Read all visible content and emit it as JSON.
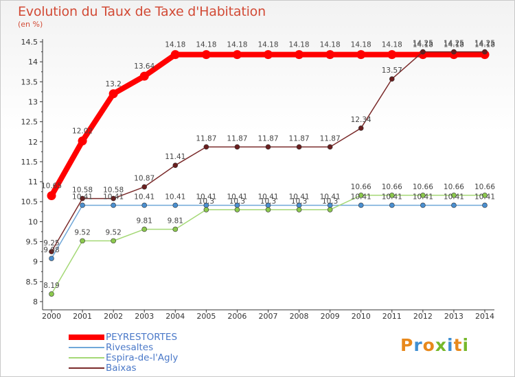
{
  "header": {
    "title": "Evolution du Taux de Taxe d'Habitation",
    "subtitle": "(en %)"
  },
  "logo": {
    "text": "Proxiti",
    "letters": [
      {
        "ch": "P",
        "color": "#e8891c"
      },
      {
        "ch": "r",
        "color": "#3f8fd2"
      },
      {
        "ch": "o",
        "color": "#e8891c"
      },
      {
        "ch": "x",
        "color": "#76b82a"
      },
      {
        "ch": "i",
        "color": "#3f8fd2"
      },
      {
        "ch": "t",
        "color": "#e8891c"
      },
      {
        "ch": "i",
        "color": "#76b82a"
      }
    ]
  },
  "chart_data": {
    "type": "line",
    "title": "Evolution du Taux de Taxe d'Habitation",
    "subtitle": "(en %)",
    "xlabel": "",
    "ylabel": "",
    "ylim": [
      8,
      14.5
    ],
    "y_ticks": [
      "8",
      "8.5",
      "9",
      "9.5",
      "10",
      "10.5",
      "11",
      "11.5",
      "12",
      "12.5",
      "13",
      "13.5",
      "14",
      "14.5"
    ],
    "grid": false,
    "legend_position": "bottom-left",
    "x": [
      "2000",
      "2001",
      "2002",
      "2003",
      "2004",
      "2005",
      "2006",
      "2007",
      "2008",
      "2009",
      "2010",
      "2011",
      "2012",
      "2013",
      "2014"
    ],
    "series": [
      {
        "name": "PEYRESTORTES",
        "color": "#ff0000",
        "marker_color": "#ff0000",
        "width": 8,
        "values": [
          10.65,
          12.02,
          13.2,
          13.64,
          14.18,
          14.18,
          14.18,
          14.18,
          14.18,
          14.18,
          14.18,
          14.18,
          14.18,
          14.18,
          14.18
        ],
        "labels": [
          "10.65",
          "12.02",
          "13.2",
          "13.64",
          "14.18",
          "14.18",
          "14.18",
          "14.18",
          "14.18",
          "14.18",
          "14.18",
          "14.18",
          "14.18",
          "14.18",
          "14.18"
        ]
      },
      {
        "name": "Rivesaltes",
        "color": "#6fa7d8",
        "marker_color": "#4a8fd0",
        "width": 1.5,
        "values": [
          9.08,
          10.41,
          10.41,
          10.41,
          10.41,
          10.41,
          10.41,
          10.41,
          10.41,
          10.41,
          10.41,
          10.41,
          10.41,
          10.41,
          10.41
        ],
        "labels": [
          "9.08",
          "10.41",
          "10.41",
          "10.41",
          "10.41",
          "10.41",
          "10.41",
          "10.41",
          "10.41",
          "10.41",
          "10.41",
          "10.41",
          "10.41",
          "10.41",
          "10.41"
        ]
      },
      {
        "name": "Espira-de-l'Agly",
        "color": "#a4d875",
        "marker_color": "#8cc94e",
        "width": 1.5,
        "values": [
          8.19,
          9.52,
          9.52,
          9.81,
          9.81,
          10.3,
          10.3,
          10.3,
          10.3,
          10.3,
          10.66,
          10.66,
          10.66,
          10.66,
          10.66
        ],
        "labels": [
          "8.19",
          "9.52",
          "9.52",
          "9.81",
          "9.81",
          "10.3",
          "10.3",
          "10.3",
          "10.3",
          "10.3",
          "10.66",
          "10.66",
          "10.66",
          "10.66",
          "10.66"
        ]
      },
      {
        "name": "Baixas",
        "color": "#7a2a2a",
        "marker_color": "#6b1f1f",
        "width": 1.5,
        "values": [
          9.25,
          10.58,
          10.58,
          10.87,
          11.41,
          11.87,
          11.87,
          11.87,
          11.87,
          11.87,
          12.34,
          13.57,
          14.25,
          14.25,
          14.25
        ],
        "labels": [
          "9.25",
          "10.58",
          "10.58",
          "10.87",
          "11.41",
          "11.87",
          "11.87",
          "11.87",
          "11.87",
          "11.87",
          "12.34",
          "13.57",
          "14.25",
          "14.25",
          "14.25"
        ]
      }
    ]
  }
}
